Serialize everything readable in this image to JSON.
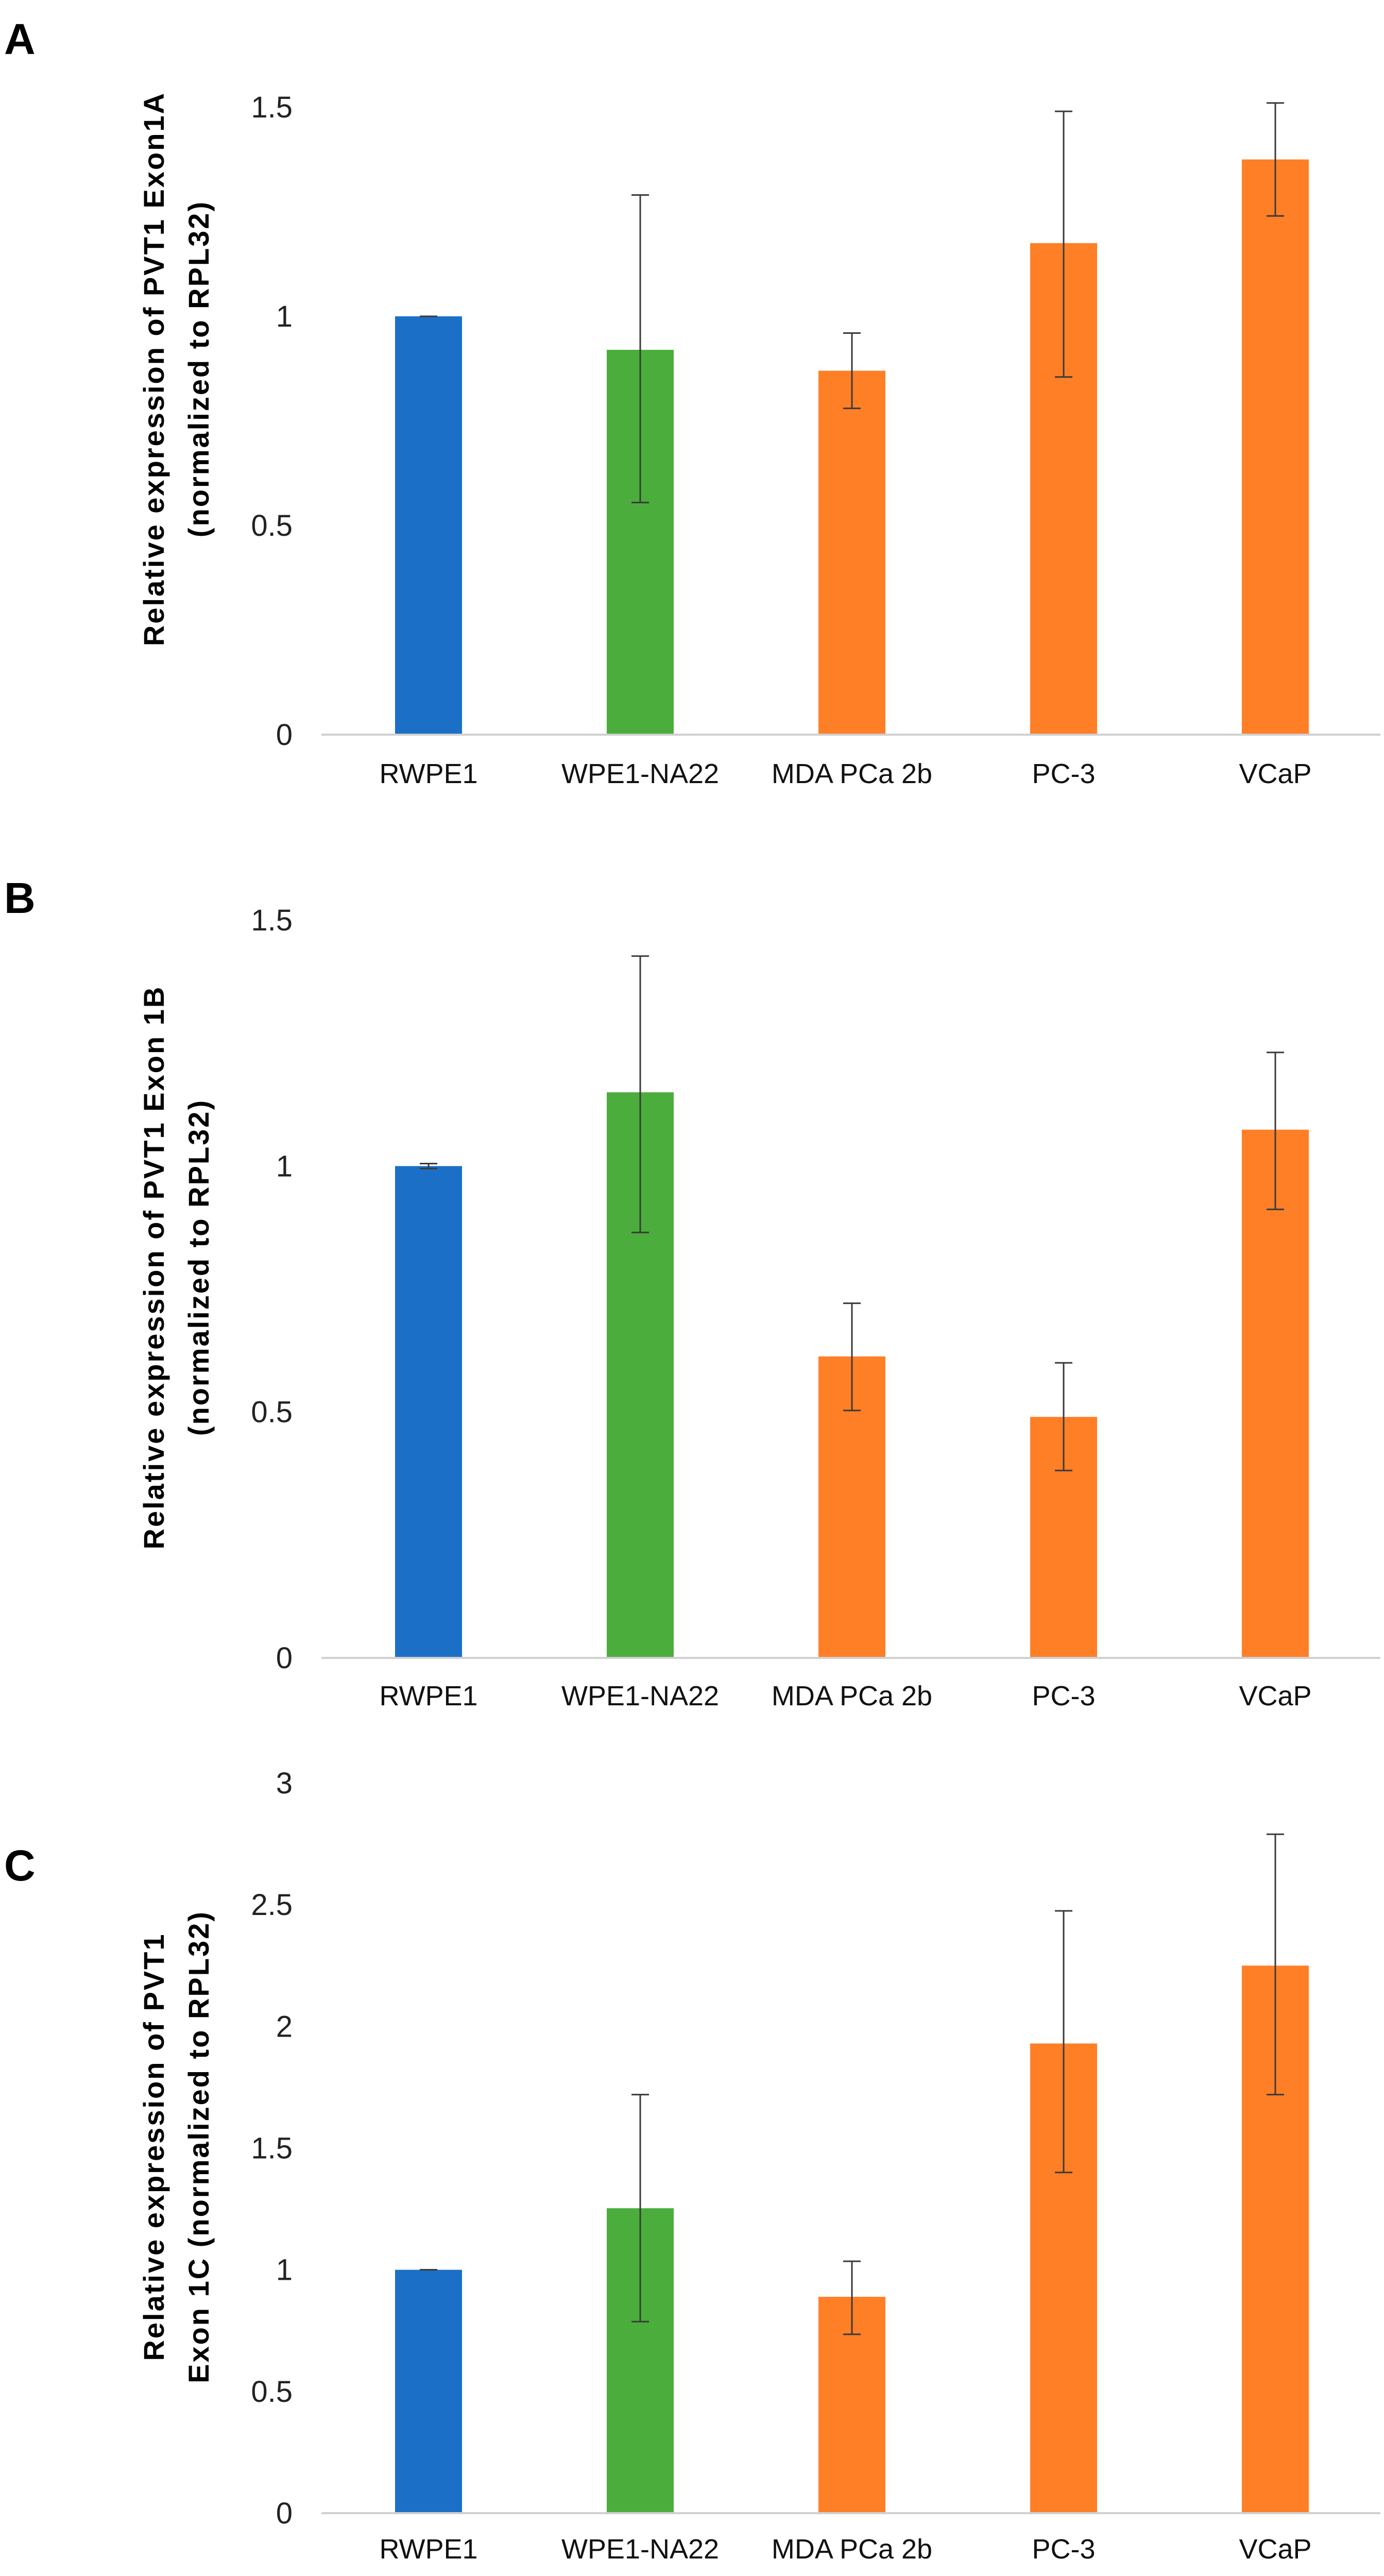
{
  "chart_data": [
    {
      "type": "bar",
      "panel_label": "A",
      "categories": [
        "RWPE1",
        "WPE1-NA22",
        "MDA PCa 2b",
        "PC-3",
        "VCaP"
      ],
      "values": [
        1.0,
        0.92,
        0.87,
        1.175,
        1.375
      ],
      "error_low": [
        1.0,
        0.555,
        0.78,
        0.855,
        1.24
      ],
      "error_high": [
        1.0,
        1.29,
        0.96,
        1.49,
        1.51
      ],
      "colors": [
        "#1C6FC6",
        "#4BAE3C",
        "#FF7F27",
        "#FF7F27",
        "#FF7F27"
      ],
      "ylabel": [
        "Relative expression of PVT1 Exon1A",
        "(normalized to RPL32)"
      ],
      "ylim": [
        0,
        1.5
      ],
      "yticks": [
        "0",
        "0.5",
        "1",
        "1.5"
      ],
      "ytick_values": [
        0,
        0.5,
        1,
        1.5
      ],
      "grid": false
    },
    {
      "type": "bar",
      "panel_label": "B",
      "categories": [
        "RWPE1",
        "WPE1-NA22",
        "MDA PCa 2b",
        "PC-3",
        "VCaP"
      ],
      "values": [
        1.0,
        1.15,
        0.613,
        0.49,
        1.074
      ],
      "error_low": [
        0.995,
        0.865,
        0.503,
        0.381,
        0.912
      ],
      "error_high": [
        1.005,
        1.427,
        0.721,
        0.6,
        1.231
      ],
      "colors": [
        "#1C6FC6",
        "#4BAE3C",
        "#FF7F27",
        "#FF7F27",
        "#FF7F27"
      ],
      "ylabel": [
        "Relative expression of PVT1 Exon 1B",
        "(normalized to RPL32)"
      ],
      "ylim": [
        0,
        1.5
      ],
      "yticks": [
        "0",
        "0.5",
        "1",
        "1.5"
      ],
      "ytick_values": [
        0,
        0.5,
        1,
        1.5
      ],
      "grid": false
    },
    {
      "type": "bar",
      "panel_label": "C",
      "categories": [
        "RWPE1",
        "WPE1-NA22",
        "MDA PCa 2b",
        "PC-3",
        "VCaP"
      ],
      "values": [
        1.0,
        1.253,
        0.889,
        1.93,
        2.25
      ],
      "error_low": [
        1.0,
        0.787,
        0.735,
        1.4,
        1.72
      ],
      "error_high": [
        1.0,
        1.72,
        1.035,
        2.475,
        2.79
      ],
      "colors": [
        "#1C6FC6",
        "#4BAE3C",
        "#FF7F27",
        "#FF7F27",
        "#FF7F27"
      ],
      "ylabel": [
        "Relative expression of PVT1",
        "Exon 1C (normalized to RPL32)"
      ],
      "ylim": [
        0,
        3
      ],
      "yticks": [
        "0",
        "0.5",
        "1",
        "1.5",
        "2",
        "2.5",
        "3"
      ],
      "ytick_values": [
        0,
        0.5,
        1,
        1.5,
        2,
        2.5,
        3
      ],
      "grid": false
    }
  ]
}
